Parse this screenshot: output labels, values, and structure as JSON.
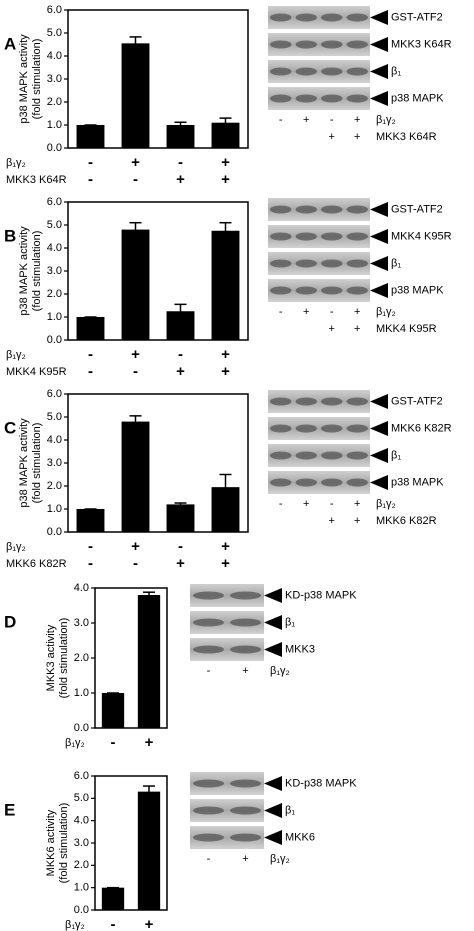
{
  "chart_data": [
    {
      "type": "bar",
      "panel": "A",
      "ylabel": [
        "p38 MAPK activity",
        "(fold stimulation)"
      ],
      "ylim": [
        0,
        6
      ],
      "yticks": [
        {
          "value": 0,
          "label": "0.0"
        },
        {
          "value": 1,
          "label": "1.0"
        },
        {
          "value": 2,
          "label": "2.0"
        },
        {
          "value": 3,
          "label": "3.0"
        },
        {
          "value": 4,
          "label": "4.0"
        },
        {
          "value": 5,
          "label": "5.0"
        },
        {
          "value": 6,
          "label": "6.0"
        }
      ],
      "values": [
        1.0,
        4.55,
        1.0,
        1.1
      ],
      "errors": [
        0,
        0.28,
        0.12,
        0.2
      ],
      "color": "#000000",
      "conditions": [
        {
          "name": "β₁γ₂",
          "signs": [
            "-",
            "+",
            "-",
            "+"
          ]
        },
        {
          "name": "MKK3 K64R",
          "signs": [
            "-",
            "-",
            "+",
            "+"
          ]
        }
      ],
      "blot": {
        "bands": [
          "GST-ATF2",
          "MKK3 K64R",
          "β₁",
          "p38 MAPK"
        ],
        "lanes": [
          {
            "name": "β₁γ₂",
            "signs": [
              "-",
              "+",
              "-",
              "+"
            ]
          },
          {
            "name": "MKK3 K64R",
            "signs": [
              null,
              null,
              "+",
              "+"
            ]
          }
        ]
      }
    },
    {
      "type": "bar",
      "panel": "B",
      "ylabel": [
        "p38 MAPK activity",
        "(fold stimulation)"
      ],
      "ylim": [
        0,
        6
      ],
      "yticks": [
        {
          "value": 0,
          "label": "0.0"
        },
        {
          "value": 1,
          "label": "1.0"
        },
        {
          "value": 2,
          "label": "2.0"
        },
        {
          "value": 3,
          "label": "3.0"
        },
        {
          "value": 4,
          "label": "4.0"
        },
        {
          "value": 5,
          "label": "5.0"
        },
        {
          "value": 6,
          "label": "6.0"
        }
      ],
      "values": [
        1.0,
        4.8,
        1.25,
        4.75
      ],
      "errors": [
        0,
        0.3,
        0.3,
        0.35
      ],
      "color": "#000000",
      "conditions": [
        {
          "name": "β₁γ₂",
          "signs": [
            "-",
            "+",
            "-",
            "+"
          ]
        },
        {
          "name": "MKK4 K95R",
          "signs": [
            "-",
            "-",
            "+",
            "+"
          ]
        }
      ],
      "blot": {
        "bands": [
          "GST-ATF2",
          "MKK4 K95R",
          "β₁",
          "p38 MAPK"
        ],
        "lanes": [
          {
            "name": "β₁γ₂",
            "signs": [
              "-",
              "+",
              "-",
              "+"
            ]
          },
          {
            "name": "MKK4 K95R",
            "signs": [
              null,
              null,
              "+",
              "+"
            ]
          }
        ]
      }
    },
    {
      "type": "bar",
      "panel": "C",
      "ylabel": [
        "p38 MAPK activity",
        "(fold stimulation)"
      ],
      "ylim": [
        0,
        6
      ],
      "yticks": [
        {
          "value": 0,
          "label": "0.0"
        },
        {
          "value": 1,
          "label": "1.0"
        },
        {
          "value": 2,
          "label": "2.0"
        },
        {
          "value": 3,
          "label": "3.0"
        },
        {
          "value": 4,
          "label": "4.0"
        },
        {
          "value": 5,
          "label": "5.0"
        },
        {
          "value": 6,
          "label": "6.0"
        }
      ],
      "values": [
        1.0,
        4.8,
        1.2,
        1.95
      ],
      "errors": [
        0,
        0.25,
        0.06,
        0.55
      ],
      "color": "#000000",
      "conditions": [
        {
          "name": "β₁γ₂",
          "signs": [
            "-",
            "+",
            "-",
            "+"
          ]
        },
        {
          "name": "MKK6 K82R",
          "signs": [
            "-",
            "-",
            "+",
            "+"
          ]
        }
      ],
      "blot": {
        "bands": [
          "GST-ATF2",
          "MKK6 K82R",
          "β₁",
          "p38 MAPK"
        ],
        "lanes": [
          {
            "name": "β₁γ₂",
            "signs": [
              "-",
              "+",
              "-",
              "+"
            ]
          },
          {
            "name": "MKK6 K82R",
            "signs": [
              null,
              null,
              "+",
              "+"
            ]
          }
        ]
      }
    },
    {
      "type": "bar",
      "panel": "D",
      "ylabel": [
        "MKK3 activity",
        "(fold stimulation)"
      ],
      "ylim": [
        0,
        4
      ],
      "yticks": [
        {
          "value": 0,
          "label": "0.0"
        },
        {
          "value": 1,
          "label": "1.0"
        },
        {
          "value": 2,
          "label": "2.0"
        },
        {
          "value": 3,
          "label": "3.0"
        },
        {
          "value": 4,
          "label": "4.0"
        }
      ],
      "values": [
        1.0,
        3.8
      ],
      "errors": [
        0,
        0.08
      ],
      "color": "#000000",
      "conditions": [
        {
          "name": "β₁γ₂",
          "signs": [
            "-",
            "+"
          ]
        }
      ],
      "blot": {
        "bands": [
          "KD-p38 MAPK",
          "β₁",
          "MKK3"
        ],
        "lanes": [
          {
            "name": "β₁γ₂",
            "signs": [
              "-",
              "+"
            ]
          }
        ]
      }
    },
    {
      "type": "bar",
      "panel": "E",
      "ylabel": [
        "MKK6 activity",
        "(fold stimulation)"
      ],
      "ylim": [
        0,
        6
      ],
      "yticks": [
        {
          "value": 0,
          "label": "0.0"
        },
        {
          "value": 1,
          "label": "1.0"
        },
        {
          "value": 2,
          "label": "2.0"
        },
        {
          "value": 3,
          "label": "3.0"
        },
        {
          "value": 4,
          "label": "4.0"
        },
        {
          "value": 5,
          "label": "5.0"
        },
        {
          "value": 6,
          "label": "6.0"
        }
      ],
      "values": [
        1.0,
        5.3
      ],
      "errors": [
        0,
        0.25
      ],
      "color": "#000000",
      "conditions": [
        {
          "name": "β₁γ₂",
          "signs": [
            "-",
            "+"
          ]
        }
      ],
      "blot": {
        "bands": [
          "KD-p38 MAPK",
          "β₁",
          "MKK6"
        ],
        "lanes": [
          {
            "name": "β₁γ₂",
            "signs": [
              "-",
              "+"
            ]
          }
        ]
      }
    }
  ]
}
